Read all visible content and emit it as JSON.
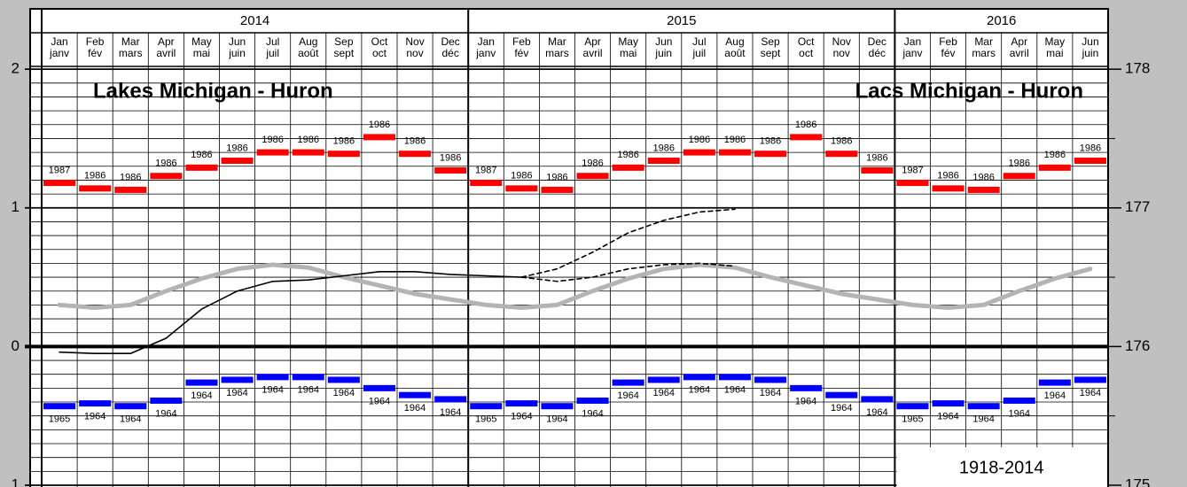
{
  "chart_data": {
    "type": "combo",
    "title": "Lakes Michigan - Huron",
    "title_fr": "Lacs Michigan - Huron",
    "period_note": "1918-2014",
    "years": [
      "2014",
      "2015",
      "2016"
    ],
    "categories": [
      "Jan",
      "Feb",
      "Mar",
      "Apr",
      "May",
      "Jun",
      "Jul",
      "Aug",
      "Sep",
      "Oct",
      "Nov",
      "Dec",
      "Jan",
      "Feb",
      "Mar",
      "Apr",
      "May",
      "Jun",
      "Jul",
      "Aug",
      "Sep",
      "Oct",
      "Nov",
      "Dec",
      "Jan",
      "Feb",
      "Mar",
      "Apr",
      "May",
      "Jun"
    ],
    "categories_fr": [
      "janv",
      "fév",
      "mars",
      "avril",
      "mai",
      "juin",
      "juil",
      "août",
      "sept",
      "oct",
      "nov",
      "déc",
      "janv",
      "fév",
      "mars",
      "avril",
      "mai",
      "juin",
      "juil",
      "août",
      "sept",
      "oct",
      "nov",
      "déc",
      "janv",
      "fév",
      "mars",
      "avril",
      "mai",
      "juin"
    ],
    "ylim": [
      -1,
      2.02
    ],
    "yticks": [
      {
        "value": -1,
        "label": "1"
      },
      0,
      1,
      2
    ],
    "y2lim": [
      175,
      178.02
    ],
    "y2ticks": [
      175,
      176,
      177,
      178
    ],
    "grid": true,
    "series": [
      {
        "type": "bar",
        "color": "#ff0000",
        "values": [
          1.18,
          1.14,
          1.13,
          1.23,
          1.29,
          1.34,
          1.4,
          1.4,
          1.39,
          1.51,
          1.39,
          1.27,
          1.18,
          1.14,
          1.13,
          1.23,
          1.29,
          1.34,
          1.4,
          1.4,
          1.39,
          1.51,
          1.39,
          1.27,
          1.18,
          1.14,
          1.13,
          1.23,
          1.29,
          1.34
        ],
        "record_years": [
          "1987",
          "1986",
          "1986",
          "1986",
          "1986",
          "1986",
          "1986",
          "1986",
          "1986",
          "1986",
          "1986",
          "1986",
          "1987",
          "1986",
          "1986",
          "1986",
          "1986",
          "1986",
          "1986",
          "1986",
          "1986",
          "1986",
          "1986",
          "1986",
          "1987",
          "1986",
          "1986",
          "1986",
          "1986",
          "1986"
        ]
      },
      {
        "type": "bar",
        "color": "#0000ff",
        "values": [
          -0.43,
          -0.41,
          -0.43,
          -0.39,
          -0.26,
          -0.24,
          -0.22,
          -0.22,
          -0.24,
          -0.3,
          -0.35,
          -0.38,
          -0.43,
          -0.41,
          -0.43,
          -0.39,
          -0.26,
          -0.24,
          -0.22,
          -0.22,
          -0.24,
          -0.3,
          -0.35,
          -0.38,
          -0.43,
          -0.41,
          -0.43,
          -0.39,
          -0.26,
          -0.24
        ],
        "record_years": [
          "1965",
          "1964",
          "1964",
          "1964",
          "1964",
          "1964",
          "1964",
          "1964",
          "1964",
          "1964",
          "1964",
          "1964",
          "1965",
          "1964",
          "1964",
          "1964",
          "1964",
          "1964",
          "1964",
          "1964",
          "1964",
          "1964",
          "1964",
          "1964",
          "1965",
          "1964",
          "1964",
          "1964",
          "1964",
          "1964"
        ]
      },
      {
        "type": "line",
        "color": "#b4b4b4",
        "width": 5,
        "values": [
          0.3,
          0.28,
          0.3,
          0.4,
          0.49,
          0.56,
          0.59,
          0.57,
          0.5,
          0.44,
          0.38,
          0.34,
          0.3,
          0.28,
          0.3,
          0.4,
          0.49,
          0.56,
          0.59,
          0.57,
          0.5,
          0.44,
          0.38,
          0.34,
          0.3,
          0.28,
          0.3,
          0.4,
          0.49,
          0.56
        ]
      },
      {
        "type": "line",
        "color": "#000000",
        "width": 1.6,
        "values": [
          -0.04,
          -0.05,
          -0.05,
          0.06,
          0.27,
          0.4,
          0.47,
          0.48,
          0.51,
          0.54,
          0.54,
          0.52,
          0.51,
          0.5,
          null,
          null,
          null,
          null,
          null,
          null,
          null,
          null,
          null,
          null,
          null,
          null,
          null,
          null,
          null,
          null
        ]
      },
      {
        "type": "line",
        "color": "#000000",
        "width": 1.6,
        "dash": true,
        "values": [
          null,
          null,
          null,
          null,
          null,
          null,
          null,
          null,
          null,
          null,
          null,
          null,
          null,
          0.5,
          0.56,
          0.68,
          0.82,
          0.91,
          0.97,
          0.99,
          null,
          null,
          null,
          null,
          null,
          null,
          null,
          null,
          null,
          null
        ]
      },
      {
        "type": "line",
        "color": "#000000",
        "width": 1.6,
        "dash": true,
        "values": [
          null,
          null,
          null,
          null,
          null,
          null,
          null,
          null,
          null,
          null,
          null,
          null,
          null,
          0.5,
          0.47,
          0.5,
          0.56,
          0.59,
          0.6,
          0.58,
          null,
          null,
          null,
          null,
          null,
          null,
          null,
          null,
          null,
          null
        ]
      }
    ]
  }
}
